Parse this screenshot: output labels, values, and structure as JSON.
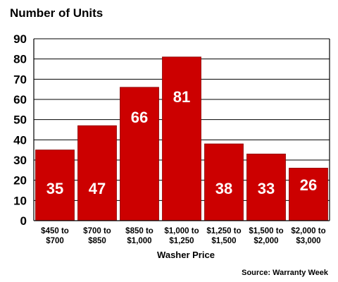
{
  "chart_data": {
    "type": "bar",
    "title": "Number of Units",
    "xlabel": "Washer Price",
    "ylabel": "",
    "source": "Source: Warranty Week",
    "categories": [
      [
        "$450 to",
        "$700"
      ],
      [
        "$700 to",
        "$850"
      ],
      [
        "$850 to",
        "$1,000"
      ],
      [
        "$1,000 to",
        "$1,250"
      ],
      [
        "$1,250 to",
        "$1,500"
      ],
      [
        "$1,500 to",
        "$2,000"
      ],
      [
        "$2,000 to",
        "$3,000"
      ]
    ],
    "values": [
      35,
      47,
      66,
      81,
      38,
      33,
      26
    ],
    "ylim": [
      0,
      90
    ],
    "yticks": [
      0,
      10,
      20,
      30,
      40,
      50,
      60,
      70,
      80,
      90
    ],
    "grid": true,
    "legend": "none",
    "colors": {
      "bar": "#cc0000",
      "bar_edge": "#8a0000",
      "grid": "#000000",
      "label": "#ffffff"
    }
  }
}
